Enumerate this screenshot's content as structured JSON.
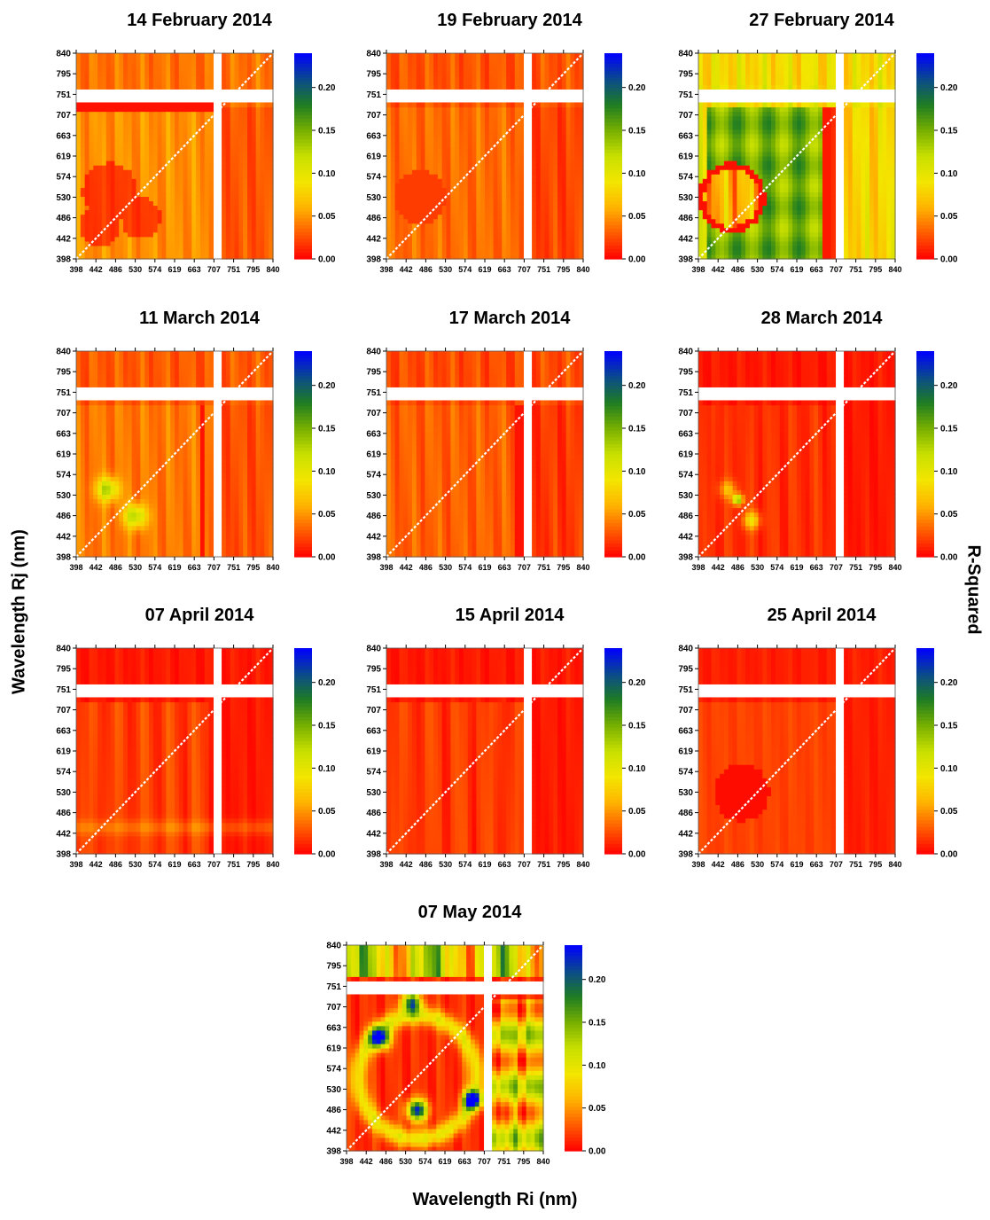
{
  "labels": {
    "y": "Wavelength Rj (nm)",
    "x": "Wavelength Ri (nm)",
    "colorbar": "R-Squared"
  },
  "colors": {
    "scale": [
      "#ff0000",
      "#ff5a00",
      "#ffb300",
      "#f3e600",
      "#c9e000",
      "#78b000",
      "#1f7d22",
      "#0a4a8c",
      "#0000ff"
    ],
    "gap": "#ffffff",
    "diagonal": "#ffffff"
  },
  "chart_data": [
    {
      "type": "heatmap",
      "title": "14 February 2014",
      "ticks": [
        398,
        442,
        486,
        530,
        574,
        619,
        663,
        707,
        751,
        795,
        840
      ],
      "colorbar_ticks": [
        "0.00",
        "0.05",
        "0.10",
        "0.15",
        "0.20"
      ],
      "colorbar_range": [
        0,
        0.24
      ],
      "pattern": "feb14"
    },
    {
      "type": "heatmap",
      "title": "19 February 2014",
      "ticks": [
        398,
        442,
        486,
        530,
        574,
        619,
        663,
        707,
        751,
        795,
        840
      ],
      "colorbar_ticks": [
        "0.00",
        "0.05",
        "0.10",
        "0.15",
        "0.20"
      ],
      "colorbar_range": [
        0,
        0.24
      ],
      "pattern": "feb19"
    },
    {
      "type": "heatmap",
      "title": "27 February 2014",
      "ticks": [
        398,
        442,
        486,
        530,
        574,
        619,
        663,
        707,
        751,
        795,
        840
      ],
      "colorbar_ticks": [
        "0.00",
        "0.05",
        "0.10",
        "0.15",
        "0.20"
      ],
      "colorbar_range": [
        0,
        0.24
      ],
      "pattern": "feb27"
    },
    {
      "type": "heatmap",
      "title": "11 March 2014",
      "ticks": [
        398,
        442,
        486,
        530,
        574,
        619,
        663,
        707,
        751,
        795,
        840
      ],
      "colorbar_ticks": [
        "0.00",
        "0.05",
        "0.10",
        "0.15",
        "0.20"
      ],
      "colorbar_range": [
        0,
        0.24
      ],
      "pattern": "mar11"
    },
    {
      "type": "heatmap",
      "title": "17 March 2014",
      "ticks": [
        398,
        442,
        486,
        530,
        574,
        619,
        663,
        707,
        751,
        795,
        840
      ],
      "colorbar_ticks": [
        "0.00",
        "0.05",
        "0.10",
        "0.15",
        "0.20"
      ],
      "colorbar_range": [
        0,
        0.24
      ],
      "pattern": "mar17"
    },
    {
      "type": "heatmap",
      "title": "28 March 2014",
      "ticks": [
        398,
        442,
        486,
        530,
        574,
        619,
        663,
        707,
        751,
        795,
        840
      ],
      "colorbar_ticks": [
        "0.00",
        "0.05",
        "0.10",
        "0.15",
        "0.20"
      ],
      "colorbar_range": [
        0,
        0.24
      ],
      "pattern": "mar28"
    },
    {
      "type": "heatmap",
      "title": "07 April 2014",
      "ticks": [
        398,
        442,
        486,
        530,
        574,
        619,
        663,
        707,
        751,
        795,
        840
      ],
      "colorbar_ticks": [
        "0.00",
        "0.05",
        "0.10",
        "0.15",
        "0.20"
      ],
      "colorbar_range": [
        0,
        0.24
      ],
      "pattern": "apr07"
    },
    {
      "type": "heatmap",
      "title": "15 April 2014",
      "ticks": [
        398,
        442,
        486,
        530,
        574,
        619,
        663,
        707,
        751,
        795,
        840
      ],
      "colorbar_ticks": [
        "0.00",
        "0.05",
        "0.10",
        "0.15",
        "0.20"
      ],
      "colorbar_range": [
        0,
        0.24
      ],
      "pattern": "apr15"
    },
    {
      "type": "heatmap",
      "title": "25 April 2014",
      "ticks": [
        398,
        442,
        486,
        530,
        574,
        619,
        663,
        707,
        751,
        795,
        840
      ],
      "colorbar_ticks": [
        "0.00",
        "0.05",
        "0.10",
        "0.15",
        "0.20"
      ],
      "colorbar_range": [
        0,
        0.24
      ],
      "pattern": "apr25"
    },
    {
      "type": "heatmap",
      "title": "07 May 2014",
      "ticks": [
        398,
        442,
        486,
        530,
        574,
        619,
        663,
        707,
        751,
        795,
        840
      ],
      "colorbar_ticks": [
        "0.00",
        "0.05",
        "0.10",
        "0.15",
        "0.20"
      ],
      "colorbar_range": [
        0,
        0.24
      ],
      "pattern": "may07"
    }
  ]
}
